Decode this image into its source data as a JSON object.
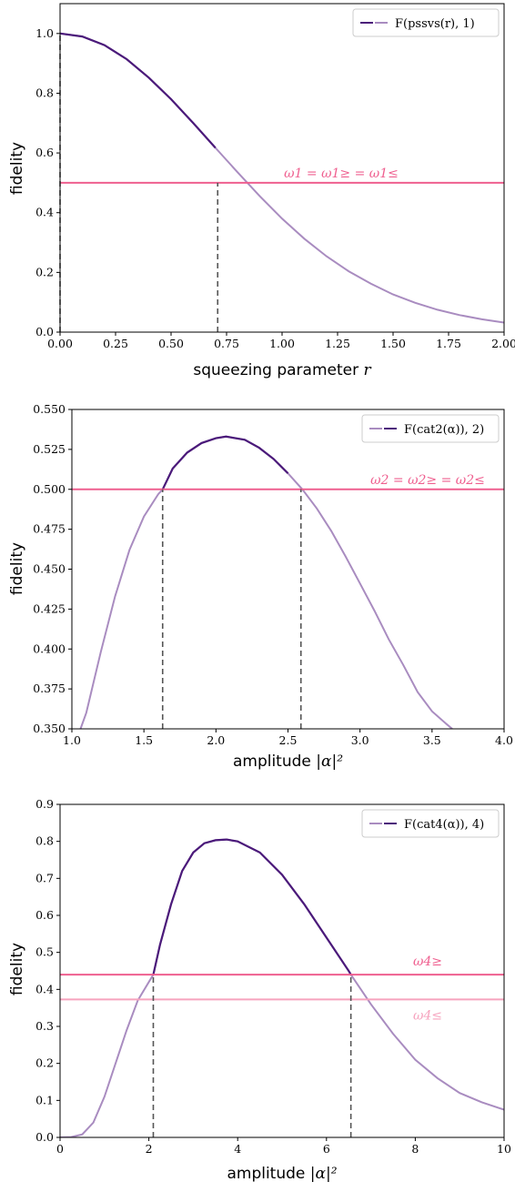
{
  "colors": {
    "dark": "#4b1a7a",
    "light": "#a98cc0",
    "pink": "#ef5f8f",
    "pink_light": "#f6a3be",
    "dash": "#555555"
  },
  "chart_data": [
    {
      "type": "line",
      "xlabel_text": "squeezing parameter ",
      "xlabel_var": "r",
      "ylabel": "fidelity",
      "xlim": [
        0,
        2
      ],
      "ylim": [
        0,
        1.1
      ],
      "xticks": [
        "0.00",
        "0.25",
        "0.50",
        "0.75",
        "1.00",
        "1.25",
        "1.50",
        "1.75",
        "2.00"
      ],
      "xtick_values": [
        0,
        0.25,
        0.5,
        0.75,
        1,
        1.25,
        1.5,
        1.75,
        2
      ],
      "yticks": [
        "0.0",
        "0.2",
        "0.4",
        "0.6",
        "0.8",
        "1.0"
      ],
      "ytick_values": [
        0,
        0.2,
        0.4,
        0.6,
        0.8,
        1.0
      ],
      "legend": {
        "label": "F(pssvs(r), 1)",
        "position": "top-right"
      },
      "curve_x": [
        0,
        0.1,
        0.2,
        0.3,
        0.4,
        0.5,
        0.6,
        0.7,
        0.8,
        0.9,
        1.0,
        1.1,
        1.2,
        1.3,
        1.4,
        1.5,
        1.6,
        1.7,
        1.8,
        1.9,
        2.0
      ],
      "curve_y": [
        1.0,
        0.99,
        0.961,
        0.914,
        0.852,
        0.78,
        0.7,
        0.617,
        0.535,
        0.455,
        0.38,
        0.313,
        0.254,
        0.204,
        0.162,
        0.126,
        0.098,
        0.075,
        0.057,
        0.043,
        0.032
      ],
      "dark_range": [
        0.0,
        0.71
      ],
      "hlines": [
        {
          "y": 0.5,
          "label": "ω1 = ω1≥ = ω1≤",
          "color_key": "pink"
        }
      ],
      "vlines": [
        0.0,
        0.71
      ]
    },
    {
      "type": "line",
      "xlabel_text": "amplitude ",
      "xlabel_var": "|α|²",
      "ylabel": "fidelity",
      "xlim": [
        1.0,
        4.0
      ],
      "ylim": [
        0.35,
        0.55
      ],
      "xticks": [
        "1.0",
        "1.5",
        "2.0",
        "2.5",
        "3.0",
        "3.5",
        "4.0"
      ],
      "xtick_values": [
        1.0,
        1.5,
        2.0,
        2.5,
        3.0,
        3.5,
        4.0
      ],
      "yticks": [
        "0.350",
        "0.375",
        "0.400",
        "0.425",
        "0.450",
        "0.475",
        "0.500",
        "0.525",
        "0.550"
      ],
      "ytick_values": [
        0.35,
        0.375,
        0.4,
        0.425,
        0.45,
        0.475,
        0.5,
        0.525,
        0.55
      ],
      "legend": {
        "label": "F(cat2(α)), 2)",
        "position": "top-right"
      },
      "curve_x": [
        1.06,
        1.1,
        1.2,
        1.3,
        1.4,
        1.5,
        1.6,
        1.63,
        1.7,
        1.8,
        1.9,
        2.0,
        2.07,
        2.2,
        2.3,
        2.4,
        2.5,
        2.6,
        2.7,
        2.8,
        2.9,
        3.0,
        3.1,
        3.2,
        3.3,
        3.4,
        3.5,
        3.6,
        3.64
      ],
      "curve_y": [
        0.35,
        0.36,
        0.398,
        0.433,
        0.462,
        0.483,
        0.497,
        0.5,
        0.513,
        0.523,
        0.529,
        0.532,
        0.533,
        0.531,
        0.526,
        0.519,
        0.51,
        0.5,
        0.488,
        0.474,
        0.458,
        0.441,
        0.424,
        0.406,
        0.39,
        0.373,
        0.361,
        0.353,
        0.35
      ],
      "dark_range": [
        1.63,
        2.59
      ],
      "hlines": [
        {
          "y": 0.5,
          "label": "ω2 = ω2≥ = ω2≤",
          "color_key": "pink"
        }
      ],
      "vlines": [
        1.63,
        2.59
      ]
    },
    {
      "type": "line",
      "xlabel_text": "amplitude ",
      "xlabel_var": "|α|²",
      "ylabel": "fidelity",
      "xlim": [
        0,
        10
      ],
      "ylim": [
        0,
        0.9
      ],
      "xticks": [
        "0",
        "2",
        "4",
        "6",
        "8",
        "10"
      ],
      "xtick_values": [
        0,
        2,
        4,
        6,
        8,
        10
      ],
      "yticks": [
        "0.0",
        "0.1",
        "0.2",
        "0.3",
        "0.4",
        "0.5",
        "0.6",
        "0.7",
        "0.8",
        "0.9"
      ],
      "ytick_values": [
        0,
        0.1,
        0.2,
        0.3,
        0.4,
        0.5,
        0.6,
        0.7,
        0.8,
        0.9
      ],
      "legend": {
        "label": "F(cat4(α)), 4)",
        "position": "top-right"
      },
      "curve_x": [
        0,
        0.25,
        0.5,
        0.75,
        1.0,
        1.25,
        1.5,
        1.75,
        2.0,
        2.1,
        2.25,
        2.5,
        2.75,
        3.0,
        3.25,
        3.5,
        3.75,
        4.0,
        4.5,
        5.0,
        5.5,
        6.0,
        6.5,
        6.55,
        7.0,
        7.5,
        8.0,
        8.5,
        9.0,
        9.5,
        10.0
      ],
      "curve_y": [
        0,
        0.001,
        0.008,
        0.04,
        0.11,
        0.2,
        0.29,
        0.37,
        0.42,
        0.44,
        0.52,
        0.63,
        0.72,
        0.77,
        0.795,
        0.803,
        0.805,
        0.8,
        0.77,
        0.71,
        0.63,
        0.54,
        0.45,
        0.44,
        0.36,
        0.28,
        0.21,
        0.16,
        0.12,
        0.095,
        0.075
      ],
      "dark_range": [
        2.1,
        6.55
      ],
      "hlines": [
        {
          "y": 0.44,
          "label": "ω4≥",
          "color_key": "pink"
        },
        {
          "y": 0.373,
          "label": "ω4≤",
          "color_key": "pink_light"
        }
      ],
      "vlines": [
        2.1,
        6.55
      ]
    }
  ]
}
